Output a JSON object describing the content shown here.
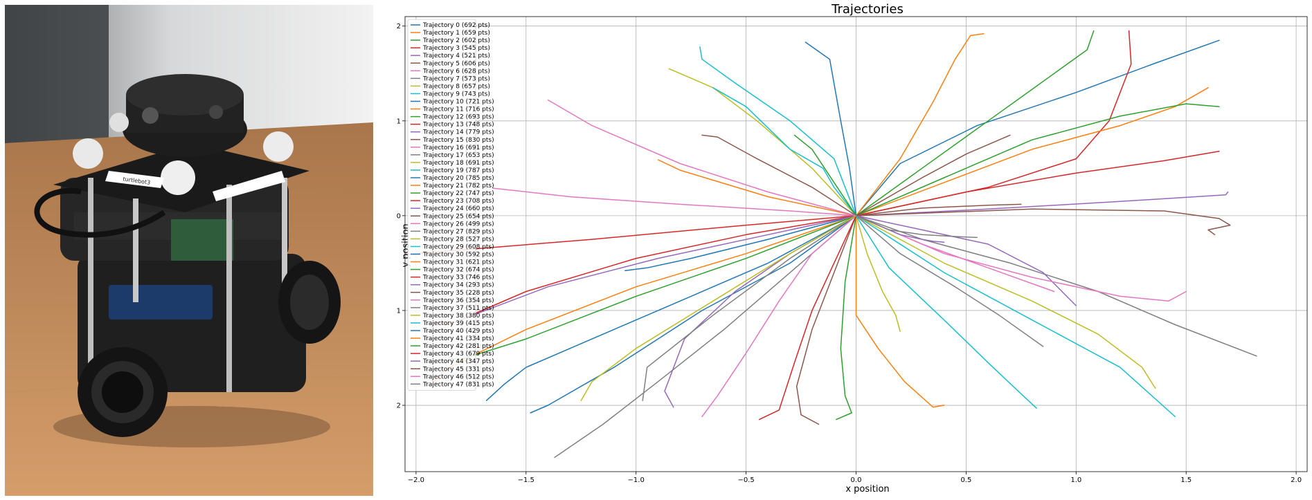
{
  "photo": {
    "label_text": "turtlebot3"
  },
  "chart_data": {
    "type": "line",
    "title": "Trajectories",
    "xlabel": "x position",
    "ylabel": "y position",
    "xlim": [
      -2.05,
      2.05
    ],
    "ylim": [
      -2.7,
      2.1
    ],
    "xticks": [
      -2.0,
      -1.5,
      -1.0,
      -0.5,
      0.0,
      0.5,
      1.0,
      1.5,
      2.0
    ],
    "yticks": [
      -2,
      -1,
      0,
      1,
      2
    ],
    "xtick_labels": [
      "−2.0",
      "−1.5",
      "−1.0",
      "−0.5",
      "0.0",
      "0.5",
      "1.0",
      "1.5",
      "2.0"
    ],
    "ytick_labels": [
      "−2",
      "−1",
      "0",
      "1",
      "2"
    ],
    "grid": true,
    "legend_position": "top-left",
    "colors": [
      "#1f77b4",
      "#ff7f0e",
      "#2ca02c",
      "#d62728",
      "#9467bd",
      "#8c564b",
      "#e377c2",
      "#7f7f7f",
      "#bcbd22",
      "#17becf"
    ],
    "series": [
      {
        "name": "Trajectory 0 (692 pts)",
        "x": [
          0.0,
          0.2,
          0.55,
          1.0,
          1.35,
          1.65
        ],
        "y": [
          0.0,
          0.55,
          0.95,
          1.3,
          1.6,
          1.85
        ]
      },
      {
        "name": "Trajectory 1 (659 pts)",
        "x": [
          0.0,
          0.2,
          0.35,
          0.45,
          0.52,
          0.58
        ],
        "y": [
          0.0,
          0.6,
          1.2,
          1.65,
          1.9,
          1.92
        ]
      },
      {
        "name": "Trajectory 2 (602 pts)",
        "x": [
          0.0,
          0.3,
          0.6,
          0.9,
          1.05,
          1.08
        ],
        "y": [
          0.0,
          0.5,
          1.0,
          1.5,
          1.75,
          1.95
        ]
      },
      {
        "name": "Trajectory 3 (545 pts)",
        "x": [
          0.0,
          0.6,
          1.0,
          1.15,
          1.25,
          1.24
        ],
        "y": [
          0.0,
          0.3,
          0.6,
          1.0,
          1.6,
          1.95
        ]
      },
      {
        "name": "Trajectory 4 (521 pts)",
        "x": [
          0.0,
          0.6,
          1.2,
          1.68,
          1.69
        ],
        "y": [
          0.0,
          0.07,
          0.15,
          0.22,
          0.25
        ]
      },
      {
        "name": "Trajectory 5 (606 pts)",
        "x": [
          0.0,
          0.8,
          1.4,
          1.65,
          1.7,
          1.6,
          1.63
        ],
        "y": [
          0.0,
          0.07,
          0.05,
          -0.03,
          -0.1,
          -0.15,
          -0.2
        ]
      },
      {
        "name": "Trajectory 6 (628 pts)",
        "x": [
          0.0,
          -0.3,
          -0.8,
          -1.3,
          -1.65
        ],
        "y": [
          0.0,
          0.05,
          0.12,
          0.2,
          0.29
        ]
      },
      {
        "name": "Trajectory 7 (573 pts)",
        "x": [
          0.0,
          0.3,
          0.7,
          1.1,
          1.45,
          1.82
        ],
        "y": [
          0.0,
          -0.25,
          -0.5,
          -0.8,
          -1.15,
          -1.48
        ]
      },
      {
        "name": "Trajectory 8 (657 pts)",
        "x": [
          0.0,
          -0.2,
          -0.45,
          -0.65,
          -0.85
        ],
        "y": [
          0.0,
          0.5,
          1.0,
          1.35,
          1.55
        ]
      },
      {
        "name": "Trajectory 9 (743 pts)",
        "x": [
          0.0,
          0.4,
          0.8,
          1.2,
          1.45
        ],
        "y": [
          0.0,
          -0.6,
          -1.1,
          -1.6,
          -2.12
        ]
      },
      {
        "name": "Trajectory 10 (721 pts)",
        "x": [
          0.0,
          -0.4,
          -0.8,
          -1.2,
          -1.5,
          -1.6,
          -1.68
        ],
        "y": [
          0.0,
          -0.5,
          -0.9,
          -1.3,
          -1.6,
          -1.78,
          -1.95
        ]
      },
      {
        "name": "Trajectory 11 (716 pts)",
        "x": [
          0.0,
          0.4,
          0.8,
          1.2,
          1.45,
          1.6
        ],
        "y": [
          0.0,
          0.35,
          0.7,
          0.95,
          1.15,
          1.35
        ]
      },
      {
        "name": "Trajectory 12 (693 pts)",
        "x": [
          0.0,
          0.4,
          0.8,
          1.2,
          1.5,
          1.65
        ],
        "y": [
          0.0,
          0.4,
          0.8,
          1.05,
          1.18,
          1.15
        ]
      },
      {
        "name": "Trajectory 13 (748 pts)",
        "x": [
          0.0,
          -0.5,
          -1.0,
          -1.5,
          -1.85,
          -1.92
        ],
        "y": [
          0.0,
          -0.2,
          -0.45,
          -0.8,
          -1.15,
          -1.12
        ]
      },
      {
        "name": "Trajectory 14 (779 pts)",
        "x": [
          0.0,
          0.3,
          0.6,
          0.85,
          1.0
        ],
        "y": [
          0.0,
          -0.15,
          -0.3,
          -0.6,
          -0.95
        ]
      },
      {
        "name": "Trajectory 15 (830 pts)",
        "x": [
          0.0,
          0.3,
          0.5,
          0.7
        ],
        "y": [
          0.0,
          0.4,
          0.65,
          0.85
        ]
      },
      {
        "name": "Trajectory 16 (691 pts)",
        "x": [
          0.0,
          0.4,
          0.8,
          1.2,
          1.42,
          1.5
        ],
        "y": [
          0.0,
          -0.4,
          -0.65,
          -0.85,
          -0.9,
          -0.8
        ]
      },
      {
        "name": "Trajectory 17 (653 pts)",
        "x": [
          0.0,
          -0.3,
          -0.6,
          -0.9,
          -1.15,
          -1.37
        ],
        "y": [
          0.0,
          -0.6,
          -1.2,
          -1.75,
          -2.2,
          -2.55
        ]
      },
      {
        "name": "Trajectory 18 (691 pts)",
        "x": [
          0.0,
          0.4,
          0.8,
          1.1,
          1.3,
          1.36
        ],
        "y": [
          0.0,
          -0.5,
          -0.9,
          -1.25,
          -1.6,
          -1.82
        ]
      },
      {
        "name": "Trajectory 19 (787 pts)",
        "x": [
          0.0,
          -0.1,
          -0.3,
          -0.55,
          -0.7,
          -0.71
        ],
        "y": [
          0.0,
          0.6,
          1.0,
          1.4,
          1.65,
          1.78
        ]
      },
      {
        "name": "Trajectory 20 (785 pts)",
        "x": [
          0.0,
          -0.4,
          -0.75,
          -0.95,
          -1.05
        ],
        "y": [
          0.0,
          -0.25,
          -0.45,
          -0.55,
          -0.58
        ]
      },
      {
        "name": "Trajectory 21 (782 pts)",
        "x": [
          0.0,
          -0.5,
          -1.0,
          -1.5,
          -1.85,
          -1.93
        ],
        "y": [
          0.0,
          -0.4,
          -0.75,
          -1.2,
          -1.6,
          -1.78
        ]
      },
      {
        "name": "Trajectory 22 (747 pts)",
        "x": [
          0.0,
          -0.5,
          -1.0,
          -1.5,
          -1.8,
          -1.85
        ],
        "y": [
          0.0,
          -0.45,
          -0.85,
          -1.3,
          -1.52,
          -1.5
        ]
      },
      {
        "name": "Trajectory 23 (708 pts)",
        "x": [
          0.0,
          -0.5,
          -1.2,
          -2.1
        ],
        "y": [
          0.0,
          -0.1,
          -0.25,
          -0.42
        ]
      },
      {
        "name": "Trajectory 24 (660 pts)",
        "x": [
          0.0,
          -0.4,
          -0.9,
          -1.4,
          -1.8
        ],
        "y": [
          0.0,
          -0.2,
          -0.45,
          -0.75,
          -1.1
        ]
      },
      {
        "name": "Trajectory 25 (654 pts)",
        "x": [
          0.0,
          -0.1,
          -0.2,
          -0.27,
          -0.25,
          -0.17
        ],
        "y": [
          0.0,
          -0.6,
          -1.2,
          -1.8,
          -2.1,
          -2.2
        ]
      },
      {
        "name": "Trajectory 26 (499 pts)",
        "x": [
          0.0,
          0.3,
          0.6,
          0.9
        ],
        "y": [
          0.0,
          -0.3,
          -0.55,
          -0.8
        ]
      },
      {
        "name": "Trajectory 27 (829 pts)",
        "x": [
          0.0,
          0.2,
          0.45,
          0.65,
          0.85
        ],
        "y": [
          0.0,
          -0.4,
          -0.75,
          -1.05,
          -1.38
        ]
      },
      {
        "name": "Trajectory 28 (527 pts)",
        "x": [
          0.0,
          0.05,
          0.12,
          0.18,
          0.2
        ],
        "y": [
          0.0,
          -0.4,
          -0.8,
          -1.05,
          -1.22
        ]
      },
      {
        "name": "Trajectory 29 (608 pts)",
        "x": [
          0.0,
          0.15,
          0.4,
          0.6,
          0.75,
          0.82
        ],
        "y": [
          0.0,
          -0.55,
          -1.1,
          -1.55,
          -1.88,
          -2.03
        ]
      },
      {
        "name": "Trajectory 30 (592 pts)",
        "x": [
          0.0,
          -0.3,
          -0.7,
          -1.1,
          -1.4,
          -1.48
        ],
        "y": [
          0.0,
          -0.5,
          -1.0,
          -1.6,
          -2.0,
          -2.08
        ]
      },
      {
        "name": "Trajectory 31 (621 pts)",
        "x": [
          0.0,
          0.0,
          0.1,
          0.22,
          0.35,
          0.4
        ],
        "y": [
          0.0,
          -1.05,
          -1.4,
          -1.75,
          -2.02,
          -2.0
        ]
      },
      {
        "name": "Trajectory 32 (674 pts)",
        "x": [
          0.0,
          -0.05,
          -0.07,
          -0.05,
          -0.02,
          -0.09
        ],
        "y": [
          0.0,
          -0.7,
          -1.4,
          -1.9,
          -2.08,
          -2.15
        ]
      },
      {
        "name": "Trajectory 33 (746 pts)",
        "x": [
          0.0,
          -0.1,
          -0.2,
          -0.28,
          -0.35,
          -0.44
        ],
        "y": [
          0.0,
          -0.5,
          -1.0,
          -1.55,
          -2.05,
          -2.15
        ]
      },
      {
        "name": "Trajectory 34 (293 pts)",
        "x": [
          0.0,
          -0.3,
          -0.55,
          -0.78,
          -0.87,
          -0.83
        ],
        "y": [
          0.0,
          -0.4,
          -0.8,
          -1.3,
          -1.85,
          -2.02
        ]
      },
      {
        "name": "Trajectory 35 (228 pts)",
        "x": [
          0.0,
          -0.2,
          -0.45,
          -0.63,
          -0.7
        ],
        "y": [
          0.0,
          0.3,
          0.6,
          0.83,
          0.85
        ]
      },
      {
        "name": "Trajectory 36 (354 pts)",
        "x": [
          0.0,
          -0.2,
          -0.35,
          -0.5,
          -0.63,
          -0.7
        ],
        "y": [
          0.0,
          -0.4,
          -0.9,
          -1.45,
          -1.9,
          -2.12
        ]
      },
      {
        "name": "Trajectory 37 (511 pts)",
        "x": [
          0.0,
          -0.3,
          -0.65,
          -0.95,
          -0.97
        ],
        "y": [
          0.0,
          -0.45,
          -1.05,
          -1.6,
          -1.95
        ]
      },
      {
        "name": "Trajectory 38 (380 pts)",
        "x": [
          0.0,
          -0.3,
          -0.65,
          -1.0,
          -1.2,
          -1.25
        ],
        "y": [
          0.0,
          -0.4,
          -0.9,
          -1.4,
          -1.75,
          -1.95
        ]
      },
      {
        "name": "Trajectory 39 (415 pts)",
        "x": [
          0.0,
          -0.1,
          -0.15,
          -0.3,
          -0.5,
          -0.65
        ],
        "y": [
          0.0,
          0.3,
          0.5,
          0.7,
          1.15,
          1.35
        ]
      },
      {
        "name": "Trajectory 40 (429 pts)",
        "x": [
          0.0,
          -0.03,
          -0.07,
          -0.12,
          -0.23
        ],
        "y": [
          0.0,
          0.5,
          1.0,
          1.65,
          1.83
        ]
      },
      {
        "name": "Trajectory 41 (334 pts)",
        "x": [
          0.0,
          -0.4,
          -0.8,
          -0.9
        ],
        "y": [
          0.0,
          0.2,
          0.48,
          0.59
        ]
      },
      {
        "name": "Trajectory 42 (281 pts)",
        "x": [
          0.0,
          -0.1,
          -0.2,
          -0.28
        ],
        "y": [
          0.0,
          0.35,
          0.7,
          0.85
        ]
      },
      {
        "name": "Trajectory 43 (679 pts)",
        "x": [
          0.0,
          0.5,
          1.0,
          1.4,
          1.65
        ],
        "y": [
          0.0,
          0.25,
          0.45,
          0.58,
          0.68
        ]
      },
      {
        "name": "Trajectory 44 (347 pts)",
        "x": [
          0.0,
          0.2,
          0.3,
          0.35,
          0.4
        ],
        "y": [
          0.0,
          -0.2,
          -0.25,
          -0.27,
          -0.28
        ]
      },
      {
        "name": "Trajectory 45 (331 pts)",
        "x": [
          0.0,
          0.3,
          0.6,
          0.75
        ],
        "y": [
          0.0,
          0.08,
          0.11,
          0.12
        ]
      },
      {
        "name": "Trajectory 46 (512 pts)",
        "x": [
          0.0,
          -0.4,
          -0.8,
          -1.2,
          -1.4
        ],
        "y": [
          0.0,
          0.25,
          0.55,
          0.95,
          1.22
        ]
      },
      {
        "name": "Trajectory 47 (831 pts)",
        "x": [
          0.0,
          0.15,
          0.3,
          0.45,
          0.55
        ],
        "y": [
          0.0,
          -0.15,
          -0.2,
          -0.22,
          -0.23
        ]
      }
    ]
  }
}
